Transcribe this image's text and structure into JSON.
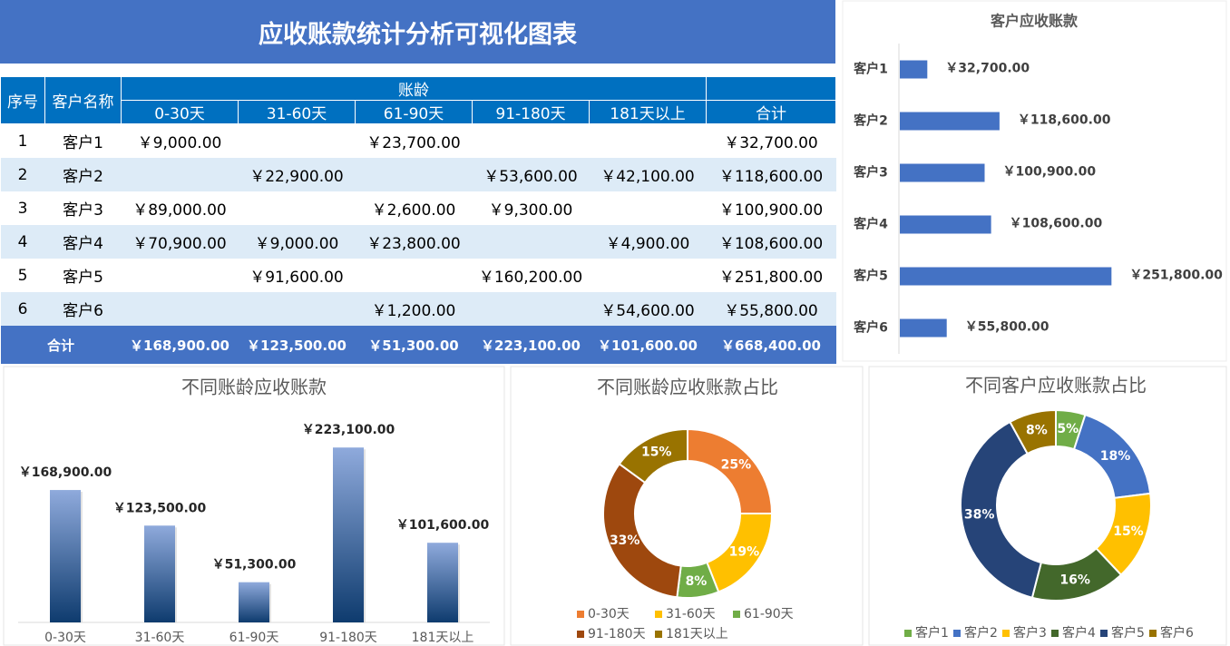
{
  "title": "应收账款统计分析可视化图表",
  "table": {
    "header": {
      "index": "序号",
      "customer": "客户名称",
      "group": "账龄",
      "buckets": [
        "0-30天",
        "31-60天",
        "61-90天",
        "91-180天",
        "181天以上"
      ],
      "total": "合计"
    },
    "rows": [
      [
        "1",
        "客户1",
        "￥9,000.00",
        null,
        "￥23,700.00",
        null,
        null,
        "￥32,700.00"
      ],
      [
        "2",
        "客户2",
        null,
        "￥22,900.00",
        null,
        "￥53,600.00",
        "￥42,100.00",
        "￥118,600.00"
      ],
      [
        "3",
        "客户3",
        "￥89,000.00",
        null,
        "￥2,600.00",
        "￥9,300.00",
        null,
        "￥100,900.00"
      ],
      [
        "4",
        "客户4",
        "￥70,900.00",
        "￥9,000.00",
        "￥23,800.00",
        null,
        "￥4,900.00",
        "￥108,600.00"
      ],
      [
        "5",
        "客户5",
        null,
        "￥91,600.00",
        null,
        "￥160,200.00",
        null,
        "￥251,800.00"
      ],
      [
        "6",
        "客户6",
        null,
        null,
        "￥1,200.00",
        null,
        "￥54,600.00",
        "￥55,800.00"
      ]
    ],
    "total_row": {
      "label": "合计",
      "values": [
        "￥168,900.00",
        "￥123,500.00",
        "￥51,300.00",
        "￥223,100.00",
        "￥101,600.00",
        "￥668,400.00"
      ]
    }
  },
  "chart_data": [
    {
      "type": "bar",
      "orientation": "horizontal",
      "title": "客户应收账款",
      "categories": [
        "客户1",
        "客户2",
        "客户3",
        "客户4",
        "客户5",
        "客户6"
      ],
      "values": [
        32700,
        118600,
        100900,
        108600,
        251800,
        55800
      ],
      "value_labels": [
        "￥32,700.00",
        "￥118,600.00",
        "￥100,900.00",
        "￥108,600.00",
        "￥251,800.00",
        "￥55,800.00"
      ],
      "xlim": [
        0,
        300000
      ],
      "color": "#4472C4"
    },
    {
      "type": "bar",
      "orientation": "vertical",
      "title": "不同账龄应收账款",
      "categories": [
        "0-30天",
        "31-60天",
        "61-90天",
        "91-180天",
        "181天以上"
      ],
      "values": [
        168900,
        123500,
        51300,
        223100,
        101600
      ],
      "value_labels": [
        "￥168,900.00",
        "￥123,500.00",
        "￥51,300.00",
        "￥223,100.00",
        "￥101,600.00"
      ],
      "ylim": [
        0,
        250000
      ],
      "gradient": [
        "#8FAADC",
        "#0E3B6E"
      ]
    },
    {
      "type": "donut",
      "title": "不同账龄应收账款占比",
      "categories": [
        "0-30天",
        "31-60天",
        "61-90天",
        "91-180天",
        "181天以上"
      ],
      "values": [
        25,
        19,
        8,
        33,
        15
      ],
      "value_labels": [
        "25%",
        "19%",
        "8%",
        "33%",
        "15%"
      ],
      "colors": [
        "#ED7D31",
        "#FFC000",
        "#70AD47",
        "#9E480E",
        "#997300"
      ]
    },
    {
      "type": "donut",
      "title": "不同客户应收账款占比",
      "categories": [
        "客户1",
        "客户2",
        "客户3",
        "客户4",
        "客户5",
        "客户6"
      ],
      "values": [
        5,
        18,
        15,
        16,
        38,
        8
      ],
      "value_labels": [
        "5%",
        "18%",
        "15%",
        "16%",
        "38%",
        "8%"
      ],
      "colors": [
        "#70AD47",
        "#4472C4",
        "#FFC000",
        "#43682B",
        "#264478",
        "#997300"
      ]
    }
  ]
}
